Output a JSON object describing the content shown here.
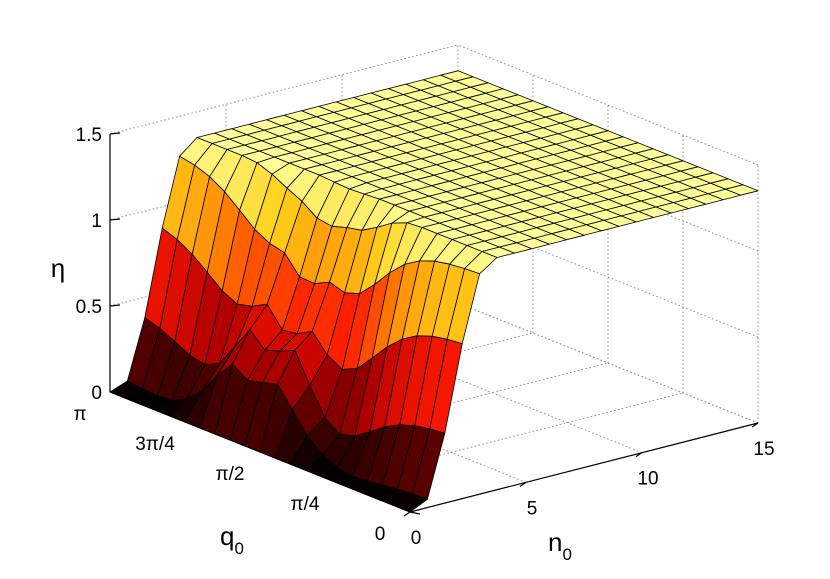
{
  "chart_data": {
    "type": "surface",
    "zlabel": "η",
    "xlabel": {
      "base": "n",
      "subscript": "0"
    },
    "ylabel": {
      "base": "q",
      "subscript": "0"
    },
    "x_axis": {
      "range": [
        0,
        15
      ],
      "ticks": [
        0,
        5,
        10,
        15
      ],
      "tick_labels": [
        "0",
        "5",
        "10",
        "15"
      ]
    },
    "y_axis": {
      "range": [
        0,
        3.1416
      ],
      "ticks": [
        0,
        0.7854,
        1.5708,
        2.3562,
        3.1416
      ],
      "tick_labels": [
        "0",
        "π/4",
        "π/2",
        "3π/4",
        "π"
      ]
    },
    "z_axis": {
      "range": [
        0,
        1.5
      ],
      "ticks": [
        0,
        0.5,
        1,
        1.5
      ],
      "tick_labels": [
        "0",
        "0.5",
        "1",
        "1.5"
      ]
    },
    "grid": true,
    "colormap": [
      "#000000",
      "#5a0000",
      "#b30000",
      "#ff1a00",
      "#ff7a00",
      "#ffd21a",
      "#ffff99"
    ],
    "edge_color": "#000000",
    "surface_model": {
      "description_note": "eta(n0,q0) read from plot: ~0 at small n0 (ridge near q0 = pi/2 reaching ~0.75 at n0~2), rising to a plateau of ~1.35 for n0 >= 4",
      "plateau": 1.35,
      "grid_n0": 21,
      "grid_q0": 21
    }
  }
}
